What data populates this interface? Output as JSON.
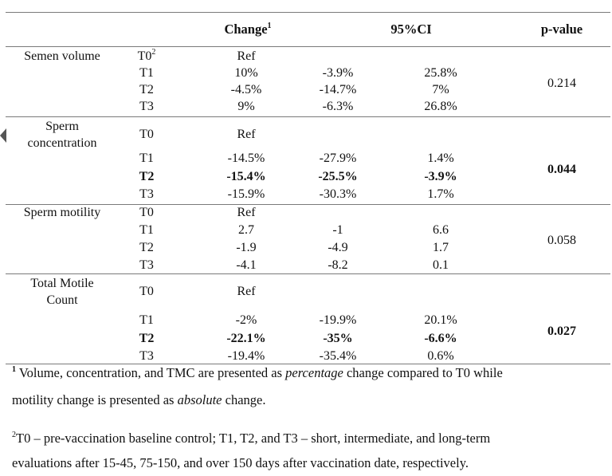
{
  "headers": {
    "change": "Change",
    "change_sup": "1",
    "ci": "95%CI",
    "pvalue": "p-value"
  },
  "groups": [
    {
      "label_lines": [
        "Semen volume"
      ],
      "p_value": "0.214",
      "p_bold": false,
      "rows": [
        {
          "t": "T0",
          "t_sup": "2",
          "change": "Ref",
          "ci_low": "",
          "ci_high": "",
          "bold": false
        },
        {
          "t": "T1",
          "change": "10%",
          "ci_low": "-3.9%",
          "ci_high": "25.8%",
          "bold": false
        },
        {
          "t": "T2",
          "change": "-4.5%",
          "ci_low": "-14.7%",
          "ci_high": "7%",
          "bold": false
        },
        {
          "t": "T3",
          "change": "9%",
          "ci_low": "-6.3%",
          "ci_high": "26.8%",
          "bold": false
        }
      ]
    },
    {
      "label_lines": [
        "Sperm",
        "concentration"
      ],
      "p_value": "0.044",
      "p_bold": true,
      "rows": [
        {
          "t": "T0",
          "change": "Ref",
          "ci_low": "",
          "ci_high": "",
          "bold": false
        },
        {
          "t": "T1",
          "change": "-14.5%",
          "ci_low": "-27.9%",
          "ci_high": "1.4%",
          "bold": false
        },
        {
          "t": "T2",
          "change": "-15.4%",
          "ci_low": "-25.5%",
          "ci_high": "-3.9%",
          "bold": true
        },
        {
          "t": "T3",
          "change": "-15.9%",
          "ci_low": "-30.3%",
          "ci_high": "1.7%",
          "bold": false
        }
      ]
    },
    {
      "label_lines": [
        "Sperm motility"
      ],
      "p_value": "0.058",
      "p_bold": false,
      "rows": [
        {
          "t": "T0",
          "change": "Ref",
          "ci_low": "",
          "ci_high": "",
          "bold": false
        },
        {
          "t": "T1",
          "change": "2.7",
          "ci_low": "-1",
          "ci_high": "6.6",
          "bold": false
        },
        {
          "t": "T2",
          "change": "-1.9",
          "ci_low": "-4.9",
          "ci_high": "1.7",
          "bold": false
        },
        {
          "t": "T3",
          "change": "-4.1",
          "ci_low": "-8.2",
          "ci_high": "0.1",
          "bold": false
        }
      ]
    },
    {
      "label_lines": [
        "Total Motile",
        "Count"
      ],
      "p_value": "0.027",
      "p_bold": true,
      "rows": [
        {
          "t": "T0",
          "change": "Ref",
          "ci_low": "",
          "ci_high": "",
          "bold": false
        },
        {
          "t": "T1",
          "change": "-2%",
          "ci_low": "-19.9%",
          "ci_high": "20.1%",
          "bold": false
        },
        {
          "t": "T2",
          "change": "-22.1%",
          "ci_low": "-35%",
          "ci_high": "-6.6%",
          "bold": true
        },
        {
          "t": "T3",
          "change": "-19.4%",
          "ci_low": "-35.4%",
          "ci_high": "0.6%",
          "bold": false
        }
      ]
    }
  ],
  "footnotes": {
    "fn1_sup": "1",
    "fn1_line1_a": " Volume, concentration, and TMC are presented as ",
    "fn1_line1_em": "percentage",
    "fn1_line1_b": " change compared to T0 while",
    "fn1_line2_a": "motility change is presented as ",
    "fn1_line2_em": "absolute",
    "fn1_line2_b": " change.",
    "fn2_sup": "2",
    "fn2_line1": "T0 – pre-vaccination baseline control; T1, T2, and T3 – short, intermediate, and long-term",
    "fn2_line2": "evaluations after 15-45, 75-150, and over 150 days after vaccination date, respectively."
  }
}
